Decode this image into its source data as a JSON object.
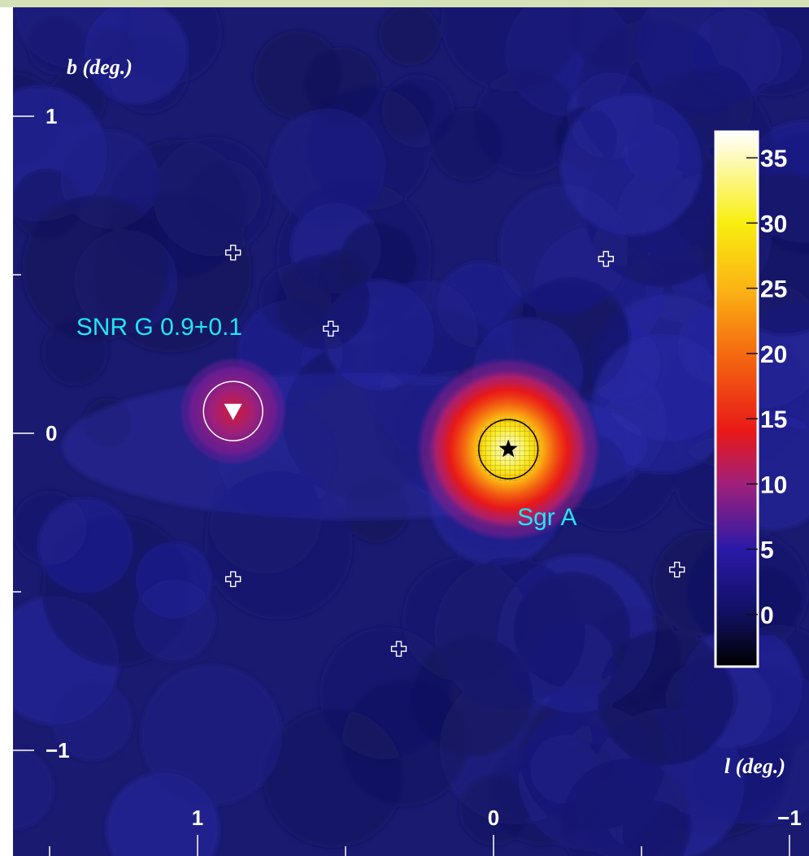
{
  "chart_data": {
    "type": "heatmap",
    "title": "",
    "xlabel": "l (deg.)",
    "ylabel": "b (deg.)",
    "x_axis_reversed": true,
    "xlim": [
      1.5,
      -1.0
    ],
    "ylim": [
      -1.25,
      1.2
    ],
    "x_ticks": [
      {
        "value": 1,
        "label": "1"
      },
      {
        "value": 0,
        "label": "0"
      },
      {
        "value": -1,
        "label": "−1"
      }
    ],
    "x_minor_ticks": [
      1.5,
      0.5,
      -0.5
    ],
    "y_ticks": [
      {
        "value": 1,
        "label": "1"
      },
      {
        "value": 0,
        "label": "0"
      },
      {
        "value": -1,
        "label": "−1"
      }
    ],
    "y_minor_ticks": [
      0.5,
      -0.5
    ],
    "colorbar": {
      "range": [
        -4,
        37
      ],
      "ticks": [
        {
          "value": 0,
          "label": "0"
        },
        {
          "value": 5,
          "label": "5"
        },
        {
          "value": 10,
          "label": "10"
        },
        {
          "value": 15,
          "label": "15"
        },
        {
          "value": 20,
          "label": "20"
        },
        {
          "value": 25,
          "label": "25"
        },
        {
          "value": 30,
          "label": "30"
        },
        {
          "value": 35,
          "label": "35"
        }
      ],
      "colors": [
        "#000000",
        "#101060",
        "#2a1aa8",
        "#a0207a",
        "#e81818",
        "#f46a10",
        "#fbb414",
        "#f8ee10",
        "#ffffff"
      ],
      "color_stops": [
        -4,
        0,
        5,
        10,
        14,
        20,
        25,
        30,
        37
      ]
    },
    "sources": [
      {
        "l": -0.05,
        "b": -0.05,
        "peak_value": 35,
        "sigma_deg": 0.12,
        "circle_radius_deg": 0.2,
        "circle_color": "#000000",
        "marker": "star",
        "marker_color": "#000000"
      },
      {
        "l": 0.88,
        "b": 0.07,
        "peak_value": 12,
        "sigma_deg": 0.07,
        "circle_radius_deg": 0.2,
        "circle_color": "#ffffff",
        "marker": "triangle-down",
        "marker_color": "#ffffff"
      }
    ],
    "crosses": [
      {
        "l": 0.88,
        "b": 0.57
      },
      {
        "l": 0.55,
        "b": 0.33
      },
      {
        "l": -0.38,
        "b": 0.55
      },
      {
        "l": 0.88,
        "b": -0.46
      },
      {
        "l": 0.32,
        "b": -0.68
      },
      {
        "l": -0.62,
        "b": -0.43
      }
    ],
    "annotations": [
      {
        "text": "SNR G 0.9+0.1",
        "l": 1.41,
        "b": 0.31
      },
      {
        "text": "Sgr A",
        "l": -0.08,
        "b": -0.29
      }
    ]
  }
}
